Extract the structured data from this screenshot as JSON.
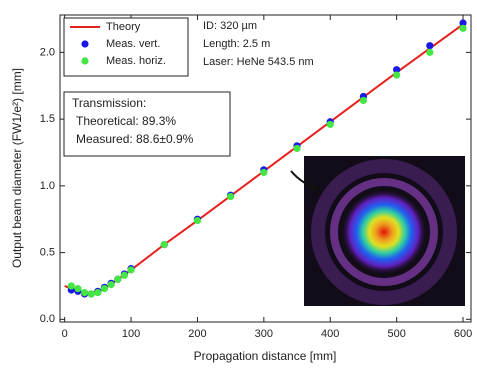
{
  "chart_data": {
    "type": "scatter",
    "x_label": "Propagation distance [mm]",
    "y_label": "Output beam diameter (FW1/e²) [mm]",
    "xlim": [
      -7,
      612
    ],
    "xticks": [
      0,
      100,
      200,
      300,
      400,
      500,
      600
    ],
    "ylim": [
      -0.02,
      2.28
    ],
    "yticks": [
      {
        "value": 0,
        "label": "0.0"
      },
      0.5,
      {
        "value": 1,
        "label": "1.0"
      },
      1.5,
      {
        "value": 2,
        "label": "2.0"
      }
    ],
    "series": [
      {
        "name": "Theory",
        "color": "#e8201c",
        "mode": "line",
        "x": [
          0,
          10,
          20,
          30,
          40,
          50,
          60,
          80,
          100,
          150,
          200,
          300,
          400,
          500,
          600
        ],
        "values": [
          0.25,
          0.23,
          0.21,
          0.2,
          0.2,
          0.21,
          0.23,
          0.3,
          0.37,
          0.56,
          0.74,
          1.11,
          1.48,
          1.85,
          2.21
        ]
      },
      {
        "name": "Meas. vert.",
        "color": "#1818e8",
        "mode": "markers",
        "x": [
          10,
          20,
          30,
          40,
          50,
          60,
          70,
          80,
          90,
          100,
          150,
          200,
          250,
          300,
          350,
          400,
          450,
          500,
          550,
          600
        ],
        "values": [
          0.22,
          0.21,
          0.19,
          0.19,
          0.21,
          0.24,
          0.27,
          0.3,
          0.34,
          0.38,
          0.56,
          0.75,
          0.93,
          1.12,
          1.3,
          1.48,
          1.67,
          1.87,
          2.05,
          2.22
        ]
      },
      {
        "name": "Meas. horiz.",
        "color": "#44e644",
        "mode": "markers",
        "x": [
          10,
          20,
          30,
          40,
          50,
          60,
          70,
          80,
          90,
          100,
          150,
          200,
          250,
          300,
          350,
          400,
          450,
          500,
          550,
          600
        ],
        "values": [
          0.25,
          0.23,
          0.2,
          0.19,
          0.2,
          0.23,
          0.26,
          0.3,
          0.33,
          0.37,
          0.56,
          0.74,
          0.92,
          1.1,
          1.28,
          1.46,
          1.64,
          1.83,
          2.0,
          2.18
        ]
      }
    ],
    "info": [
      {
        "text": "ID: 320 µm",
        "color": "#222222"
      },
      {
        "text": "Length: 2.5 m",
        "color": "#e8201c"
      },
      {
        "text": "Laser: HeNe 543.5 nm",
        "color": "#222222"
      }
    ],
    "transmission": [
      "Transmission:",
      "Theoretical: 89.3%",
      "Measured:  88.6±0.9%"
    ],
    "transmission_color": "#e8201c"
  }
}
